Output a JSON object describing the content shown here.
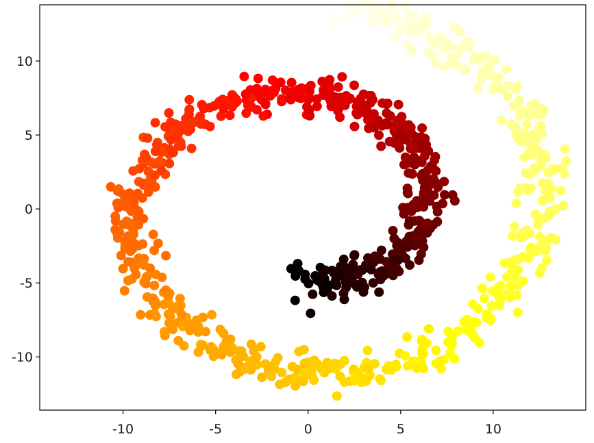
{
  "chart_data": {
    "type": "scatter",
    "title": "",
    "xlabel": "",
    "ylabel": "",
    "xlim": [
      -14.5,
      15.0
    ],
    "ylim": [
      -13.6,
      13.8
    ],
    "grid": false,
    "legend": "none",
    "colormap": "hot",
    "x_ticks": [
      -10,
      -5,
      0,
      5,
      10
    ],
    "x_tick_labels": [
      "-10",
      "-5",
      "0",
      "5",
      "10"
    ],
    "y_ticks": [
      10,
      5,
      0,
      -5,
      -10
    ],
    "y_tick_labels": [
      "10",
      "5",
      "0",
      "-5",
      "-10"
    ],
    "series": [
      {
        "shape": "swiss-roll spiral (unrolled)",
        "color_by": "position along spiral",
        "count": 1000,
        "t_range": [
          4.7,
          14.1
        ],
        "noise": 0.6,
        "x": "t * cos(t)",
        "y": "t * sin(t)",
        "color_range": [
          "#000000",
          "#ffffe6"
        ]
      }
    ]
  }
}
